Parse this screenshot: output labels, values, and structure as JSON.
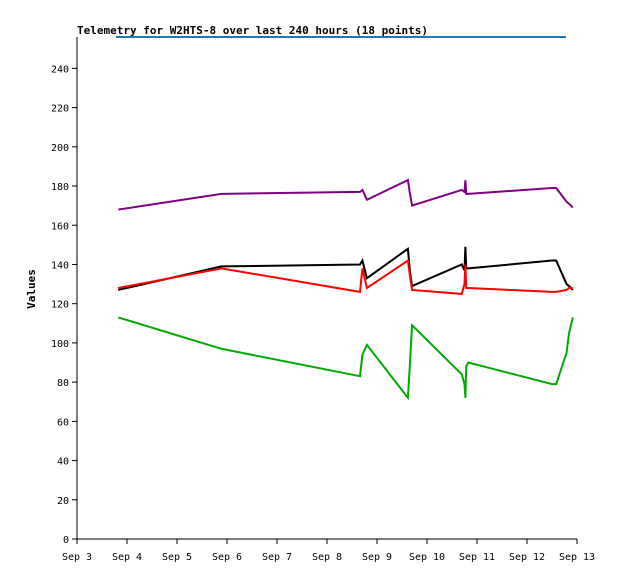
{
  "chart_data": {
    "type": "line",
    "title": "Telemetry for W2HTS-8 over last 240 hours (18 points)",
    "xlabel": "",
    "ylabel": "Values",
    "ylim": [
      0,
      256
    ],
    "xlim": [
      "2024-09-03T00:00",
      "2024-09-13T00:00"
    ],
    "x_tick_labels": [
      "Sep 3",
      "Sep 4",
      "Sep 5",
      "Sep 6",
      "Sep 7",
      "Sep 8",
      "Sep 9",
      "Sep 10",
      "Sep 11",
      "Sep 12",
      "Sep 13"
    ],
    "y_ticks": [
      0,
      20,
      40,
      60,
      80,
      100,
      120,
      140,
      160,
      180,
      200,
      220,
      240
    ],
    "grid": false,
    "legend": "none",
    "top_line": {
      "value": 256,
      "color": "#1f77b4"
    },
    "x": [
      "2024-09-03T19:48",
      "2024-09-05T21:20",
      "2024-09-08T15:50",
      "2024-09-08T17:00",
      "2024-09-08T19:10",
      "2024-09-09T14:50",
      "2024-09-09T15:50",
      "2024-09-09T16:50",
      "2024-09-10T16:40",
      "2024-09-10T18:00",
      "2024-09-10T18:25",
      "2024-09-10T18:50",
      "2024-09-10T19:50",
      "2024-09-12T12:00",
      "2024-09-12T14:00",
      "2024-09-12T19:00",
      "2024-09-12T20:10",
      "2024-09-12T22:00"
    ],
    "series": [
      {
        "color": "#800080",
        "values": [
          168,
          176,
          177,
          178,
          173,
          183,
          176,
          170,
          178,
          177,
          183,
          176,
          176,
          179,
          179,
          172,
          171,
          169
        ]
      },
      {
        "color": "#000000",
        "values": [
          127,
          139,
          140,
          142,
          133,
          148,
          136,
          129,
          140,
          137,
          149,
          138,
          138,
          142,
          142,
          130,
          129,
          127
        ]
      },
      {
        "color": "#ff0000",
        "values": [
          128,
          138,
          126,
          138,
          128,
          142,
          134,
          127,
          125,
          130,
          140,
          128,
          128,
          126,
          126,
          127,
          128,
          128
        ]
      },
      {
        "color": "#00aa00",
        "values": [
          113,
          97,
          83,
          94,
          99,
          72,
          90,
          109,
          84,
          79,
          72,
          88,
          90,
          79,
          79,
          95,
          105,
          113
        ]
      }
    ]
  }
}
